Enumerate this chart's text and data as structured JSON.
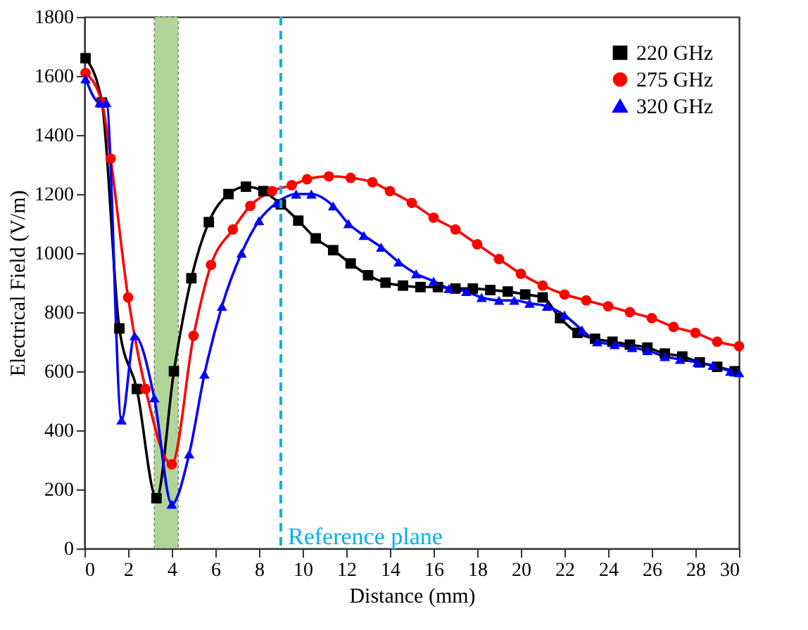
{
  "chart_data": {
    "type": "line",
    "xlabel": "Distance (mm)",
    "ylabel": "Electrical Field (V/m)",
    "xlim": [
      0,
      30
    ],
    "xticks": [
      0,
      2,
      4,
      6,
      8,
      10,
      12,
      14,
      16,
      18,
      20,
      22,
      24,
      26,
      28,
      30
    ],
    "ylim": [
      0,
      1800
    ],
    "yticks": [
      0,
      200,
      400,
      600,
      800,
      1000,
      1200,
      1400,
      1600,
      1800
    ],
    "grid": false,
    "legend": "top right",
    "line_style": "solid",
    "series": [
      {
        "name": "220 GHz",
        "color": "#000000",
        "marker": "square",
        "x": [
          0.05,
          0.8,
          1.6,
          2.4,
          3.3,
          4.1,
          4.9,
          5.7,
          6.6,
          7.4,
          8.2,
          9.0,
          9.8,
          10.6,
          11.4,
          12.2,
          13.0,
          13.8,
          14.6,
          15.4,
          16.2,
          17.0,
          17.8,
          18.6,
          19.4,
          20.2,
          21.0,
          21.8,
          22.6,
          23.4,
          24.2,
          25.0,
          25.8,
          26.6,
          27.4,
          28.2,
          29.0,
          29.8
        ],
        "values": [
          1660,
          1510,
          745,
          540,
          170,
          600,
          915,
          1105,
          1200,
          1225,
          1210,
          1165,
          1110,
          1050,
          1010,
          965,
          925,
          900,
          890,
          885,
          885,
          880,
          880,
          875,
          870,
          860,
          850,
          780,
          730,
          710,
          700,
          690,
          680,
          660,
          650,
          630,
          615,
          600
        ]
      },
      {
        "name": "275 GHz",
        "color": "#ff0000",
        "marker": "circle",
        "x": [
          0.05,
          0.8,
          1.2,
          2.0,
          2.8,
          4.0,
          5.0,
          5.8,
          6.8,
          7.6,
          8.6,
          9.5,
          10.2,
          11.2,
          12.2,
          13.2,
          14.0,
          15.0,
          16.0,
          17.0,
          18.0,
          19.0,
          20.0,
          21.0,
          22.0,
          23.0,
          24.0,
          25.0,
          26.0,
          27.0,
          28.0,
          29.0,
          30.0
        ],
        "values": [
          1610,
          1510,
          1320,
          850,
          540,
          285,
          720,
          960,
          1080,
          1160,
          1210,
          1230,
          1250,
          1260,
          1255,
          1240,
          1210,
          1170,
          1120,
          1080,
          1030,
          980,
          930,
          890,
          860,
          840,
          820,
          800,
          780,
          750,
          730,
          700,
          685
        ]
      },
      {
        "name": "320 GHz",
        "color": "#0000ff",
        "marker": "triangle",
        "x": [
          0.05,
          0.7,
          1.0,
          1.7,
          2.3,
          3.2,
          4.0,
          4.8,
          5.5,
          6.3,
          7.2,
          8.0,
          8.8,
          9.7,
          10.4,
          11.4,
          12.1,
          12.8,
          13.6,
          14.4,
          15.2,
          16.0,
          16.7,
          17.5,
          18.2,
          19.0,
          19.7,
          20.4,
          21.2,
          22.0,
          22.8,
          23.5,
          24.3,
          25.1,
          25.8,
          26.6,
          27.3,
          28.1,
          28.8,
          29.6,
          30.0
        ],
        "values": [
          1590,
          1510,
          1510,
          435,
          720,
          510,
          150,
          320,
          590,
          820,
          1000,
          1110,
          1170,
          1200,
          1200,
          1160,
          1100,
          1060,
          1020,
          970,
          930,
          905,
          880,
          870,
          850,
          840,
          840,
          830,
          820,
          790,
          740,
          700,
          690,
          680,
          670,
          650,
          640,
          630,
          620,
          600,
          595
        ]
      }
    ],
    "bands": [
      {
        "axis": "x",
        "from": 3.2,
        "to": 4.3,
        "color": "#a9d18e"
      }
    ],
    "ref_lines": [
      {
        "axis": "x",
        "value": 9,
        "label": "Reference plane",
        "color": "#00b0f0",
        "line_style": "dashed"
      }
    ]
  }
}
